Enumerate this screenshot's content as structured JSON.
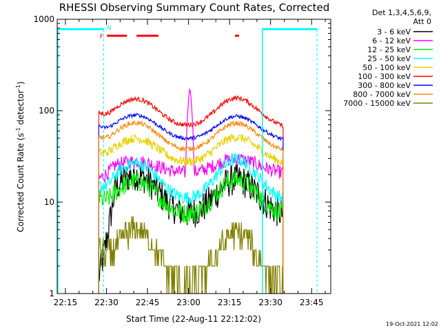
{
  "chart_data": {
    "type": "line",
    "title": "RHESSI Observing Summary Count Rates, Corrected",
    "xlabel": "Start Time (22-Aug-11 22:12:02)",
    "ylabel_main": "Corrected Count Rate (s",
    "ylabel_sup1": "-1",
    "ylabel_mid": " detector",
    "ylabel_sup2": "-1",
    "ylabel_end": ")",
    "yscale": "log",
    "ylim": [
      1,
      1000
    ],
    "xlim_minutes": [
      -3,
      97
    ],
    "x_ticks": [
      {
        "label": "22:15",
        "min": 0
      },
      {
        "label": "22:30",
        "min": 15
      },
      {
        "label": "22:45",
        "min": 30
      },
      {
        "label": "23:00",
        "min": 45
      },
      {
        "label": "23:15",
        "min": 60
      },
      {
        "label": "23:30",
        "min": 75
      },
      {
        "label": "23:45",
        "min": 90
      }
    ],
    "y_ticks": [
      {
        "label": "1",
        "value": 1
      },
      {
        "label": "10",
        "value": 10
      },
      {
        "label": "100",
        "value": 100
      },
      {
        "label": "1000",
        "value": 1000
      }
    ],
    "legend_header": [
      "Det 1,3,4,5,6,9,",
      "Att 0"
    ],
    "data_start_min": 12.2,
    "data_end_min": 79.6,
    "series": [
      {
        "name": "3 - 6 keV",
        "color": "#000000",
        "start": 1.5,
        "peak1": 20,
        "dip": 6.5,
        "peak2": 18,
        "noise": 0.35,
        "rise": true
      },
      {
        "name": "6 - 12 keV",
        "color": "#ff00ff",
        "start": 18,
        "peak1": 28,
        "dip": 20,
        "peak2": 30,
        "noise": 0.15,
        "spike": 160
      },
      {
        "name": "12 - 25 keV",
        "color": "#00ee00",
        "start": 11,
        "peak1": 17,
        "dip": 6.5,
        "peak2": 18,
        "noise": 0.22
      },
      {
        "name": "25 - 50 keV",
        "color": "#00ffff",
        "start": 15,
        "peak1": 27,
        "dip": 9.5,
        "peak2": 30,
        "noise": 0.15
      },
      {
        "name": "50 - 100 keV",
        "color": "#e6d200",
        "start": 35,
        "peak1": 50,
        "dip": 25,
        "peak2": 52,
        "noise": 0.1
      },
      {
        "name": "100 - 300 keV",
        "color": "#ff0000",
        "start": 95,
        "peak1": 135,
        "dip": 62,
        "peak2": 140,
        "noise": 0.05
      },
      {
        "name": "300 - 800 keV",
        "color": "#0000ff",
        "start": 68,
        "peak1": 90,
        "dip": 45,
        "peak2": 88,
        "noise": 0.04
      },
      {
        "name": "800 - 7000 keV",
        "color": "#ff8800",
        "start": 52,
        "peak1": 74,
        "dip": 34,
        "peak2": 74,
        "noise": 0.05
      },
      {
        "name": "7000 - 15000 keV",
        "color": "#808000",
        "start": 3,
        "peak1": 5,
        "dip": 1,
        "peak2": 4.8,
        "noise": 0.3,
        "step": true
      }
    ],
    "attenuator_segments": [
      {
        "from": -3,
        "to": 14
      },
      {
        "from": 72,
        "to": 92
      }
    ],
    "dashed_markers_min": [
      14,
      92
    ],
    "solid_marker_min": 72,
    "flare_flag_label": "F",
    "night_flag_label": "N",
    "flare_segments": [
      {
        "from": 15.2,
        "to": 22.5
      },
      {
        "from": 26,
        "to": 34
      },
      {
        "from": 62,
        "to": 63.5
      }
    ],
    "timestamp": "19-Oct-2021 12:02"
  }
}
